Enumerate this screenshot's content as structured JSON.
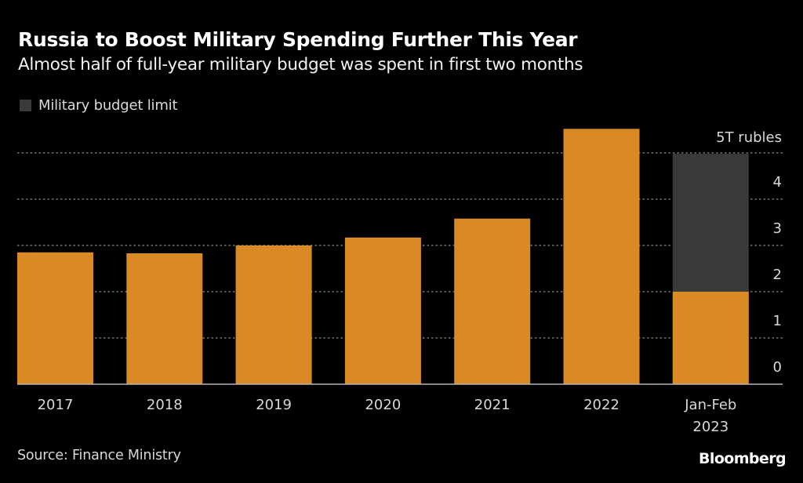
{
  "chart_data": {
    "type": "bar",
    "title": "Russia to Boost Military Spending Further This Year",
    "subtitle": "Almost half of full-year military budget was spent in first two months",
    "categories": [
      "2017",
      "2018",
      "2019",
      "2020",
      "2021",
      "2022",
      "Jan-Feb\n2023"
    ],
    "series": [
      {
        "name": "Military spending",
        "color": "#DA8A24",
        "values": [
          2.85,
          2.83,
          3.0,
          3.17,
          3.58,
          5.52,
          2.0
        ]
      },
      {
        "name": "Military budget limit",
        "color": "#3A3A3A",
        "values": [
          null,
          null,
          null,
          null,
          null,
          null,
          4.98
        ]
      }
    ],
    "legend": [
      {
        "label": "Military budget limit",
        "color": "#3A3A3A"
      }
    ],
    "legend_position": "top-left",
    "yaxis": {
      "ticks": [
        0,
        1,
        2,
        3,
        4,
        5
      ],
      "tick_labels": [
        "0",
        "1",
        "2",
        "3",
        "4",
        "5T rubles"
      ],
      "position": "right"
    },
    "ylim": [
      0,
      5.6
    ],
    "grid": true,
    "xlabel": "",
    "ylabel": "",
    "source": "Source: Finance Ministry",
    "brand": "Bloomberg"
  }
}
